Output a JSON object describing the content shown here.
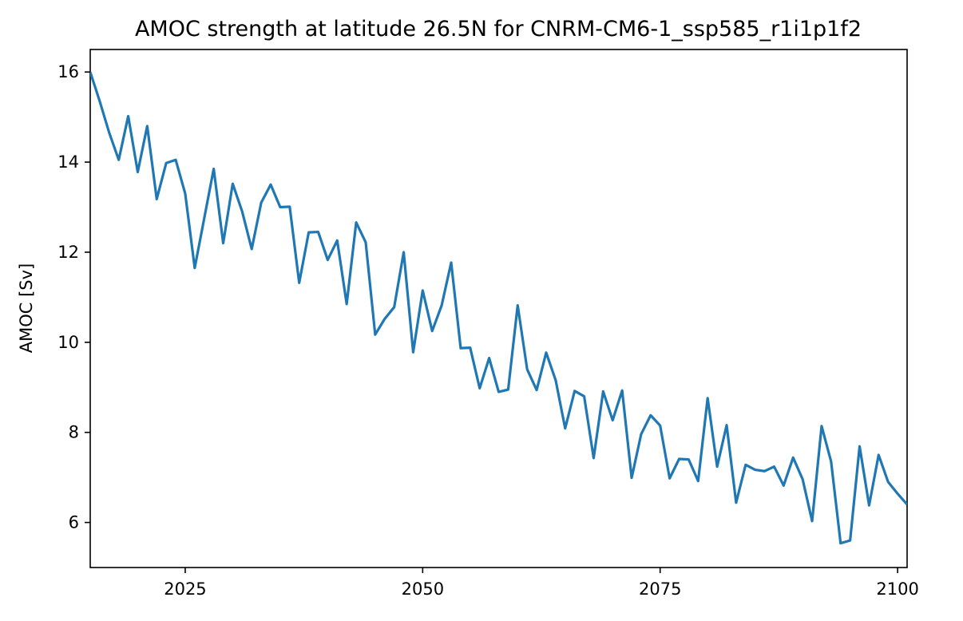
{
  "chart_data": {
    "type": "line",
    "title": "AMOC strength at latitude 26.5N for CNRM-CM6-1_ssp585_r1i1p1f2",
    "xlabel": "",
    "ylabel": "AMOC [Sv]",
    "xlim": [
      2015,
      2101
    ],
    "ylim": [
      5.0,
      16.5
    ],
    "xticks": [
      2025,
      2050,
      2075,
      2100
    ],
    "yticks": [
      6,
      8,
      10,
      12,
      14,
      16
    ],
    "grid": false,
    "line_color": "#1f77b4",
    "series": [
      {
        "x": [
          2015,
          2016,
          2017,
          2018,
          2019,
          2020,
          2021,
          2022,
          2023,
          2024,
          2025,
          2026,
          2027,
          2028,
          2029,
          2030,
          2031,
          2032,
          2033,
          2034,
          2035,
          2036,
          2037,
          2038,
          2039,
          2040,
          2041,
          2042,
          2043,
          2044,
          2045,
          2046,
          2047,
          2048,
          2049,
          2050,
          2051,
          2052,
          2053,
          2054,
          2055,
          2056,
          2057,
          2058,
          2059,
          2060,
          2061,
          2062,
          2063,
          2064,
          2065,
          2066,
          2067,
          2068,
          2069,
          2070,
          2071,
          2072,
          2073,
          2074,
          2075,
          2076,
          2077,
          2078,
          2079,
          2080,
          2081,
          2082,
          2083,
          2084,
          2085,
          2086,
          2087,
          2088,
          2089,
          2090,
          2091,
          2092,
          2093,
          2094,
          2095,
          2096,
          2097,
          2098,
          2099,
          2100,
          2101
        ],
        "values": [
          16.0,
          15.35,
          14.65,
          14.05,
          15.02,
          13.78,
          14.8,
          13.18,
          13.98,
          14.05,
          13.3,
          11.65,
          12.75,
          13.85,
          12.2,
          13.52,
          12.9,
          12.07,
          13.1,
          13.5,
          13.0,
          13.01,
          11.32,
          12.44,
          12.45,
          11.83,
          12.26,
          10.85,
          12.66,
          12.22,
          10.17,
          10.52,
          10.78,
          12.0,
          9.78,
          11.15,
          10.25,
          10.82,
          11.77,
          9.87,
          9.88,
          8.98,
          9.65,
          8.9,
          8.95,
          10.82,
          9.4,
          8.94,
          9.77,
          9.16,
          8.09,
          8.92,
          8.8,
          7.43,
          8.91,
          8.27,
          8.93,
          6.99,
          7.96,
          8.38,
          8.15,
          6.98,
          7.41,
          7.4,
          6.92,
          8.76,
          7.24,
          8.16,
          6.44,
          7.28,
          7.17,
          7.14,
          7.24,
          6.82,
          7.44,
          6.96,
          6.03,
          8.14,
          7.35,
          5.54,
          5.6,
          7.69,
          6.38,
          7.5,
          6.9,
          6.64,
          6.4
        ]
      }
    ]
  }
}
